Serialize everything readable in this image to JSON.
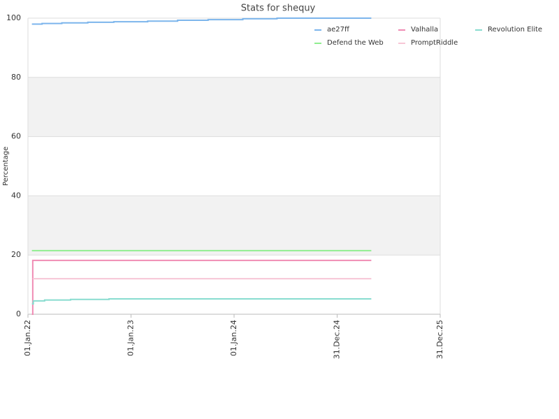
{
  "chart_data": {
    "type": "line",
    "title": "Stats for shequy",
    "y_label": "Percentage",
    "step": true,
    "grid": true,
    "legend": "top-right",
    "xlim": [
      "2022-01-01",
      "2025-12-31"
    ],
    "xticks": [
      {
        "value": "2022-01-01",
        "label": "01.Jan.22"
      },
      {
        "value": "2023-01-01",
        "label": "01.Jan.23"
      },
      {
        "value": "2024-01-01",
        "label": "01.Jan.24"
      },
      {
        "value": "2024-12-31",
        "label": "31.Dec.24"
      },
      {
        "value": "2025-12-31",
        "label": "31.Dec.25"
      }
    ],
    "ylim": [
      0,
      100
    ],
    "yticks": [
      0,
      20,
      40,
      60,
      80,
      100
    ],
    "series": [
      {
        "name": "ae27ff",
        "color": "#7cb5ec",
        "x": [
          "2022-01-15",
          "2022-02-20",
          "2022-05-01",
          "2022-08-01",
          "2022-11-01",
          "2023-03-01",
          "2023-06-15",
          "2023-10-01",
          "2024-02-01",
          "2024-06-01",
          "2025-05-01"
        ],
        "values": [
          98.0,
          98.2,
          98.4,
          98.6,
          98.8,
          99.0,
          99.3,
          99.5,
          99.8,
          100,
          100
        ]
      },
      {
        "name": "Valhalla",
        "color": "#f08cb4",
        "x": [
          "2022-01-15",
          "2022-01-18",
          "2025-05-01"
        ],
        "values": [
          0,
          18.2,
          18.2
        ]
      },
      {
        "name": "Revolution Elite",
        "color": "#88dccf",
        "x": [
          "2022-01-15",
          "2022-01-20",
          "2022-03-01",
          "2022-06-01",
          "2022-10-15",
          "2025-05-01"
        ],
        "values": [
          3.5,
          4.5,
          4.8,
          5.0,
          5.2,
          5.2
        ]
      },
      {
        "name": "Defend the Web",
        "color": "#90ee90",
        "x": [
          "2022-01-15",
          "2025-05-01"
        ],
        "values": [
          21.5,
          21.5
        ]
      },
      {
        "name": "PromptRiddle",
        "color": "#f7c6d6",
        "x": [
          "2022-01-18",
          "2025-05-01"
        ],
        "values": [
          12,
          12
        ]
      }
    ]
  }
}
